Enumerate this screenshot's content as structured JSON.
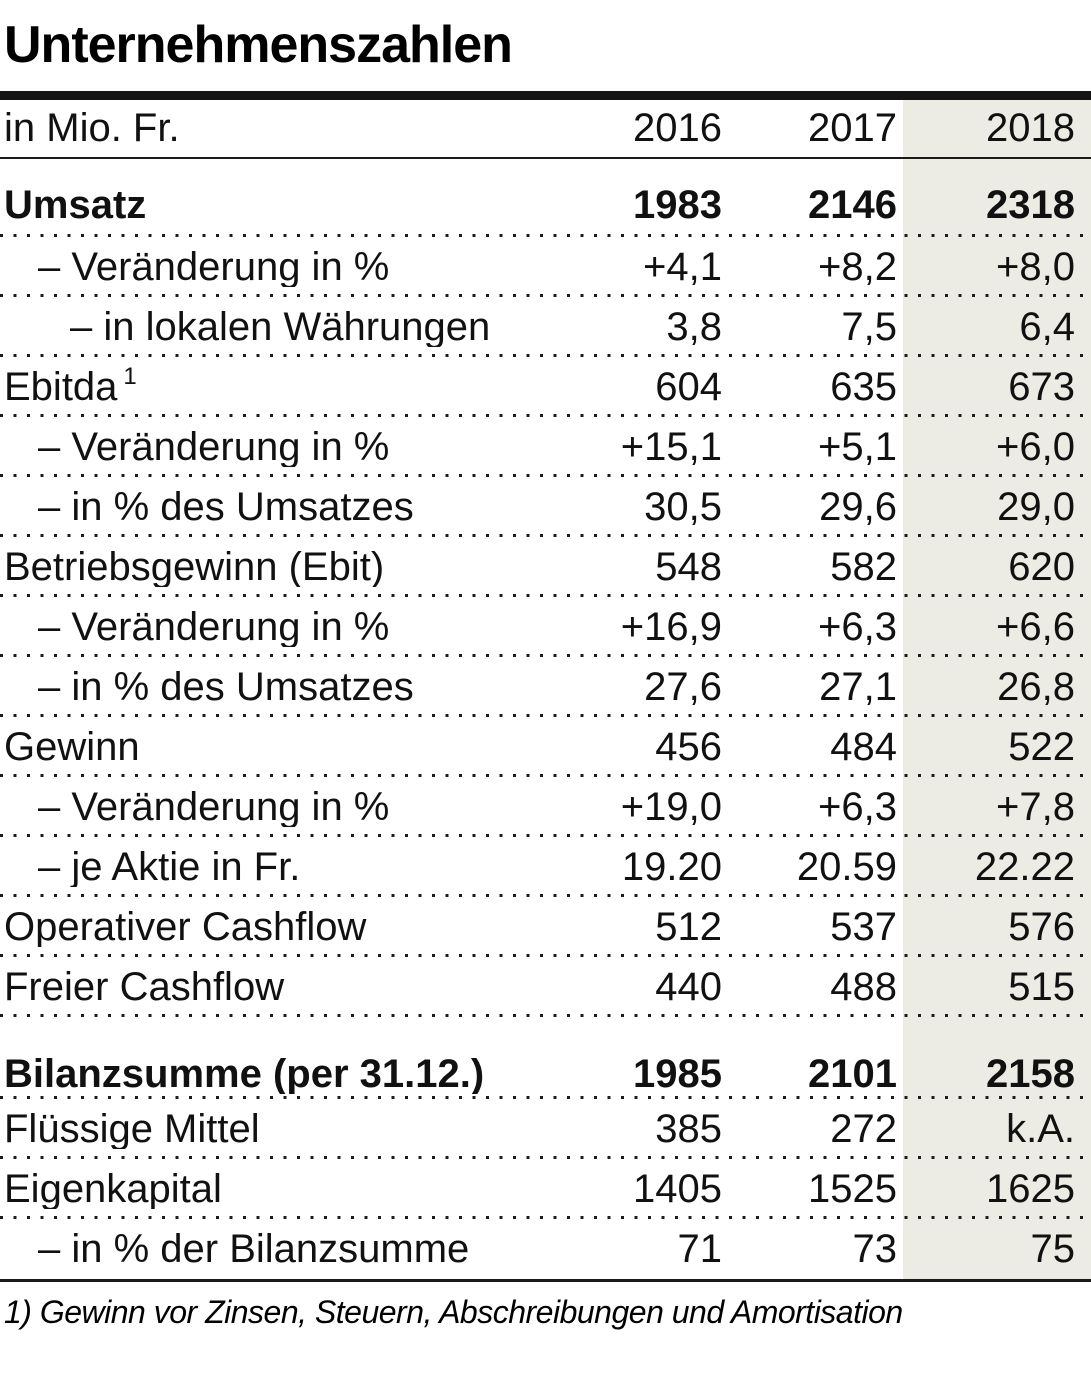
{
  "chart_data": {
    "type": "table",
    "title": "Unternehmenszahlen",
    "unit_label": "in Mio. Fr.",
    "columns": [
      "2016",
      "2017",
      "2018"
    ],
    "highlighted_column": "2018",
    "highlight_color": "#ECECE5",
    "rows": [
      {
        "label": "Umsatz",
        "bold": true,
        "indent": 0,
        "values": [
          "1983",
          "2146",
          "2318"
        ]
      },
      {
        "label": "– Veränderung in %",
        "indent": 1,
        "values": [
          "+4,1",
          "+8,2",
          "+8,0"
        ]
      },
      {
        "label": "– in lokalen Währungen",
        "indent": 2,
        "values": [
          "3,8",
          "7,5",
          "6,4"
        ]
      },
      {
        "label": "Ebitda",
        "sup": "1",
        "indent": 0,
        "values": [
          "604",
          "635",
          "673"
        ]
      },
      {
        "label": "– Veränderung in %",
        "indent": 1,
        "values": [
          "+15,1",
          "+5,1",
          "+6,0"
        ]
      },
      {
        "label": "– in % des Umsatzes",
        "indent": 1,
        "values": [
          "30,5",
          "29,6",
          "29,0"
        ]
      },
      {
        "label": "Betriebsgewinn (Ebit)",
        "indent": 0,
        "values": [
          "548",
          "582",
          "620"
        ]
      },
      {
        "label": "– Veränderung in %",
        "indent": 1,
        "values": [
          "+16,9",
          "+6,3",
          "+6,6"
        ]
      },
      {
        "label": "– in % des Umsatzes",
        "indent": 1,
        "values": [
          "27,6",
          "27,1",
          "26,8"
        ]
      },
      {
        "label": "Gewinn",
        "indent": 0,
        "values": [
          "456",
          "484",
          "522"
        ]
      },
      {
        "label": "– Veränderung in %",
        "indent": 1,
        "values": [
          "+19,0",
          "+6,3",
          "+7,8"
        ]
      },
      {
        "label": "– je Aktie in Fr.",
        "indent": 1,
        "values": [
          "19.20",
          "20.59",
          "22.22"
        ]
      },
      {
        "label": "Operativer Cashflow",
        "indent": 0,
        "values": [
          "512",
          "537",
          "576"
        ]
      },
      {
        "label": "Freier Cashflow",
        "indent": 0,
        "values": [
          "440",
          "488",
          "515"
        ]
      },
      {
        "label": "Bilanzsumme (per 31.12.)",
        "bold": true,
        "indent": 0,
        "spacer_before": true,
        "values": [
          "1985",
          "2101",
          "2158"
        ]
      },
      {
        "label": "Flüssige Mittel",
        "indent": 0,
        "values": [
          "385",
          "272",
          "k.A."
        ]
      },
      {
        "label": "Eigenkapital",
        "indent": 0,
        "values": [
          "1405",
          "1525",
          "1625"
        ]
      },
      {
        "label": "– in % der Bilanzsumme",
        "indent": 1,
        "values": [
          "71",
          "73",
          "75"
        ]
      }
    ],
    "footnote": "1) Gewinn vor Zinsen, Steuern, Abschreibungen und Amortisation"
  }
}
